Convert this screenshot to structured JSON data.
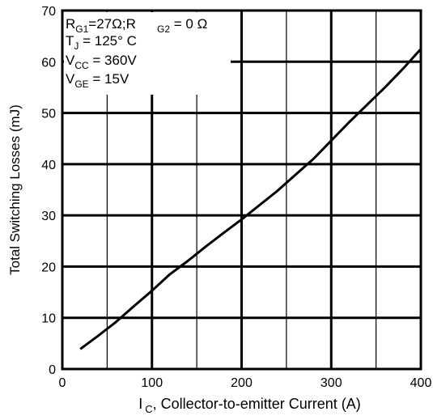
{
  "chart_data": {
    "type": "line",
    "title": "",
    "xlabel": "I",
    "xlabel_sub": "C",
    "xlabel_rest": ", Collector-to-emitter Current (A)",
    "ylabel": "Total Switching Losses (mJ)",
    "xlim": [
      0,
      400
    ],
    "ylim": [
      0,
      70
    ],
    "x_ticks": [
      0,
      100,
      200,
      300,
      400
    ],
    "y_ticks": [
      0,
      10,
      20,
      30,
      40,
      50,
      60,
      70
    ],
    "grid": true,
    "x": [
      20,
      40,
      60,
      80,
      100,
      120,
      140,
      160,
      180,
      200,
      220,
      240,
      260,
      280,
      300,
      320,
      340,
      360,
      380,
      400
    ],
    "series": [
      {
        "values": [
          3.9,
          6.5,
          9.2,
          12.3,
          15.3,
          18.5,
          21.1,
          23.9,
          26.6,
          29.2,
          32.0,
          34.8,
          37.9,
          41.0,
          44.6,
          48.2,
          51.6,
          55.0,
          58.6,
          62.5
        ]
      }
    ],
    "annotations": [
      {
        "main": "R",
        "sub": "G1",
        "rest": "=27Ω;R"
      },
      {
        "main": "",
        "sub": "G2",
        "rest": " = 0 Ω"
      },
      {
        "main": "T",
        "sub": "J",
        "rest": " = 125° C"
      },
      {
        "main": "V",
        "sub": "CC",
        "rest": " = 360V"
      },
      {
        "main": "V",
        "sub": "GE",
        "rest": " = 15V"
      }
    ]
  }
}
